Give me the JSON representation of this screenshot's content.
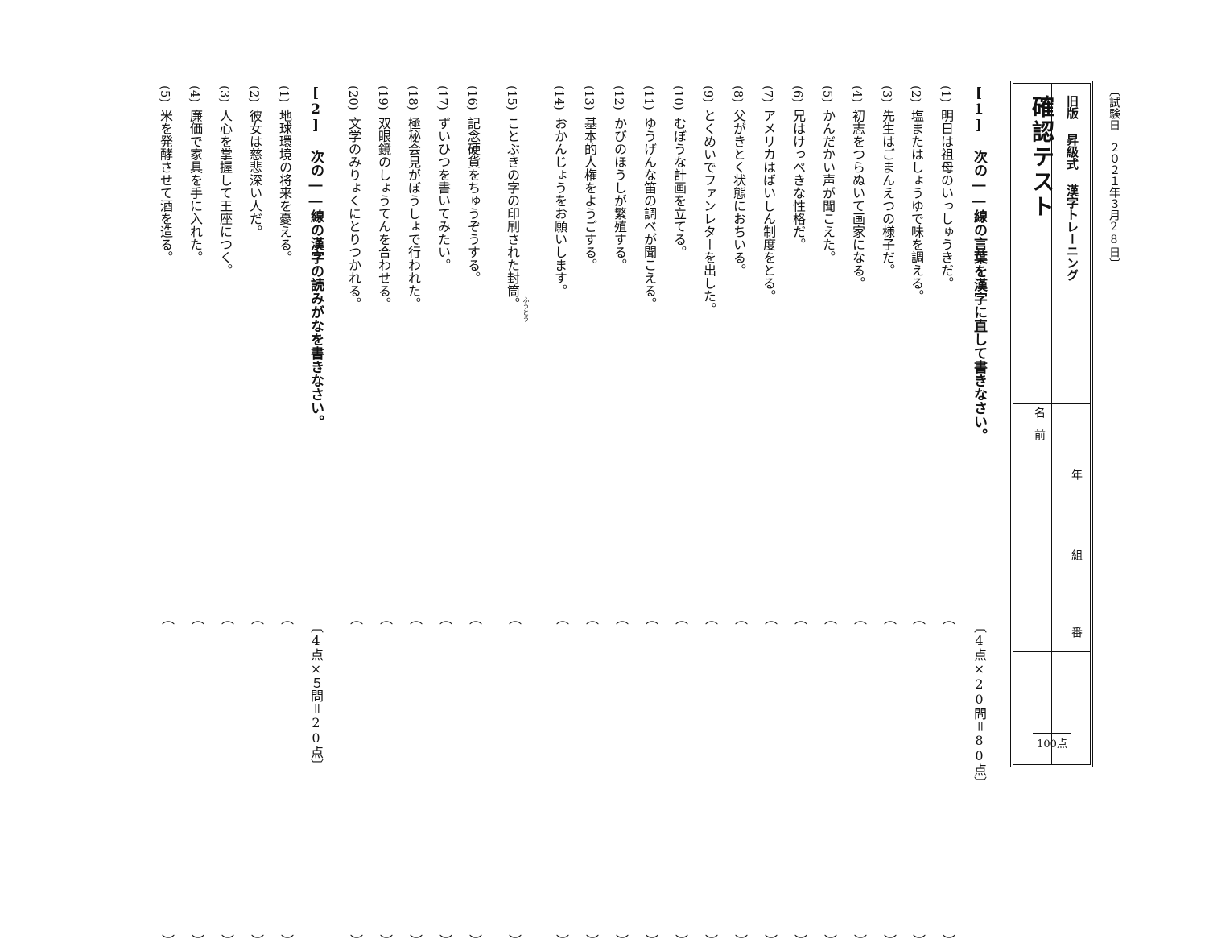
{
  "header": {
    "date": "〔試験日　２０２１年３月28日〕",
    "subtitle": "旧版 昇級式 漢字トレーニング",
    "title": "確認テスト",
    "name_label": "名前",
    "grade_label": "年",
    "class_label": "組",
    "number_label": "番",
    "total_score": "100点"
  },
  "section1": {
    "heading": "[1] 次の――線の言葉を漢字に直して書きなさい。",
    "points": "〔4点×20問＝80点〕",
    "items": [
      {
        "num": "(1)",
        "text": "明日は祖母のいっしゅうきだ。"
      },
      {
        "num": "(2)",
        "text": "塩またはしょうゆで味を調える。"
      },
      {
        "num": "(3)",
        "text": "先生はごまんえつの様子だ。"
      },
      {
        "num": "(4)",
        "text": "初志をつらぬいて画家になる。"
      },
      {
        "num": "(5)",
        "text": "かんだかい声が聞こえた。"
      },
      {
        "num": "(6)",
        "text": "兄はけっぺきな性格だ。"
      },
      {
        "num": "(7)",
        "text": "アメリカはばいしん制度をとる。"
      },
      {
        "num": "(8)",
        "text": "父がきとく状態におちいる。"
      },
      {
        "num": "(9)",
        "text": "とくめいでファンレターを出した。"
      },
      {
        "num": "(10)",
        "text": "むぼうな計画を立てる。"
      },
      {
        "num": "(11)",
        "text": "ゆうげんな笛の調べが聞こえる。"
      },
      {
        "num": "(12)",
        "text": "かびのほうしが繁殖する。"
      },
      {
        "num": "(13)",
        "text": "基本的人権をようごする。"
      },
      {
        "num": "(14)",
        "text": "おかんじょうをお願いします。"
      },
      {
        "num": "(15)",
        "text": "ことぶきの字の印刷された封筒。",
        "ruby": "ふうとう"
      },
      {
        "num": "(16)",
        "text": "記念硬貨をちゅうぞうする。"
      },
      {
        "num": "(17)",
        "text": "ずいひつを書いてみたい。"
      },
      {
        "num": "(18)",
        "text": "極秘会見がぼうしょで行われた。"
      },
      {
        "num": "(19)",
        "text": "双眼鏡のしょうてんを合わせる。"
      },
      {
        "num": "(20)",
        "text": "文学のみりょくにとりつかれる。"
      }
    ]
  },
  "section2": {
    "heading": "[2] 次の――線の漢字の読みがなを書きなさい。",
    "points": "〔4点×５問＝20点〕",
    "items": [
      {
        "num": "(1)",
        "text": "地球環境の将来を憂える。"
      },
      {
        "num": "(2)",
        "text": "彼女は慈悲深い人だ。"
      },
      {
        "num": "(3)",
        "text": "人心を掌握して王座につく。"
      },
      {
        "num": "(4)",
        "text": "廉価で家具を手に入れた。"
      },
      {
        "num": "(5)",
        "text": "米を発酵させて酒を造る。"
      }
    ]
  },
  "answer_blank": "（　　　　　　　　　　　　　　　　　　　　　　　　）"
}
